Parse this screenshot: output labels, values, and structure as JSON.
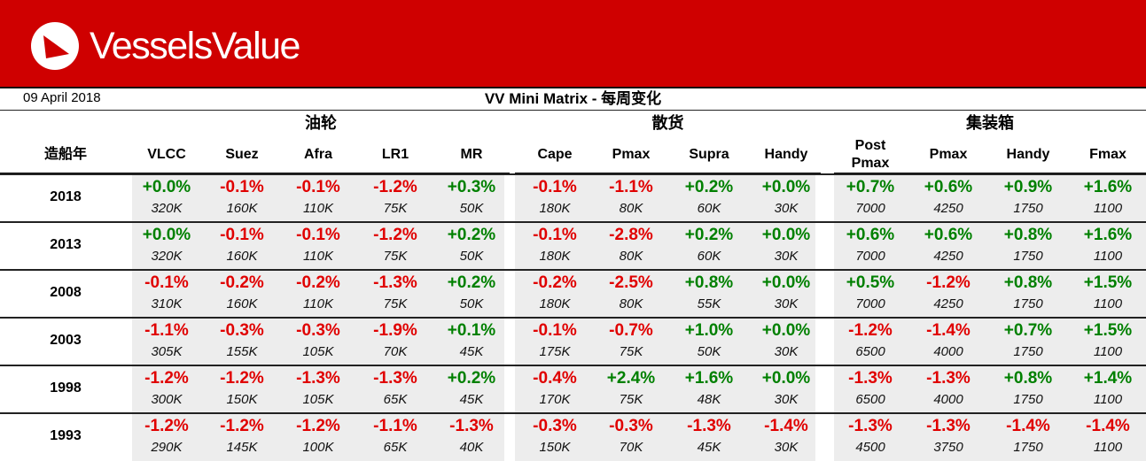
{
  "brand": {
    "name": "VesselsValue",
    "icon": "vesselsvalue-logo-icon"
  },
  "header": {
    "date": "09 April 2018",
    "title": "VV Mini Matrix - 每周变化"
  },
  "colors": {
    "banner": "#cf0000",
    "negative": "#e00000",
    "positive": "#008000",
    "cell_bg": "#ededed"
  },
  "row_label_header": "造船年",
  "groups": [
    {
      "name": "油轮",
      "columns": [
        "VLCC",
        "Suez",
        "Afra",
        "LR1",
        "MR"
      ]
    },
    {
      "name": "散货",
      "columns": [
        "Cape",
        "Pmax",
        "Supra",
        "Handy"
      ]
    },
    {
      "name": "集装箱",
      "columns": [
        "Post\nPmax",
        "Pmax",
        "Handy",
        "Fmax"
      ]
    }
  ],
  "rows": [
    {
      "year": "2018",
      "pct": [
        "+0.0%",
        "-0.1%",
        "-0.1%",
        "-1.2%",
        "+0.3%",
        "-0.1%",
        "-1.1%",
        "+0.2%",
        "+0.0%",
        "+0.7%",
        "+0.6%",
        "+0.9%",
        "+1.6%"
      ],
      "val": [
        "320K",
        "160K",
        "110K",
        "75K",
        "50K",
        "180K",
        "80K",
        "60K",
        "30K",
        "7000",
        "4250",
        "1750",
        "1100"
      ]
    },
    {
      "year": "2013",
      "pct": [
        "+0.0%",
        "-0.1%",
        "-0.1%",
        "-1.2%",
        "+0.2%",
        "-0.1%",
        "-2.8%",
        "+0.2%",
        "+0.0%",
        "+0.6%",
        "+0.6%",
        "+0.8%",
        "+1.6%"
      ],
      "val": [
        "320K",
        "160K",
        "110K",
        "75K",
        "50K",
        "180K",
        "80K",
        "60K",
        "30K",
        "7000",
        "4250",
        "1750",
        "1100"
      ]
    },
    {
      "year": "2008",
      "pct": [
        "-0.1%",
        "-0.2%",
        "-0.2%",
        "-1.3%",
        "+0.2%",
        "-0.2%",
        "-2.5%",
        "+0.8%",
        "+0.0%",
        "+0.5%",
        "-1.2%",
        "+0.8%",
        "+1.5%"
      ],
      "val": [
        "310K",
        "160K",
        "110K",
        "75K",
        "50K",
        "180K",
        "80K",
        "55K",
        "30K",
        "7000",
        "4250",
        "1750",
        "1100"
      ]
    },
    {
      "year": "2003",
      "pct": [
        "-1.1%",
        "-0.3%",
        "-0.3%",
        "-1.9%",
        "+0.1%",
        "-0.1%",
        "-0.7%",
        "+1.0%",
        "+0.0%",
        "-1.2%",
        "-1.4%",
        "+0.7%",
        "+1.5%"
      ],
      "val": [
        "305K",
        "155K",
        "105K",
        "70K",
        "45K",
        "175K",
        "75K",
        "50K",
        "30K",
        "6500",
        "4000",
        "1750",
        "1100"
      ]
    },
    {
      "year": "1998",
      "pct": [
        "-1.2%",
        "-1.2%",
        "-1.3%",
        "-1.3%",
        "+0.2%",
        "-0.4%",
        "+2.4%",
        "+1.6%",
        "+0.0%",
        "-1.3%",
        "-1.3%",
        "+0.8%",
        "+1.4%"
      ],
      "val": [
        "300K",
        "150K",
        "105K",
        "65K",
        "45K",
        "170K",
        "75K",
        "48K",
        "30K",
        "6500",
        "4000",
        "1750",
        "1100"
      ]
    },
    {
      "year": "1993",
      "pct": [
        "-1.2%",
        "-1.2%",
        "-1.2%",
        "-1.1%",
        "-1.3%",
        "-0.3%",
        "-0.3%",
        "-1.3%",
        "-1.4%",
        "-1.3%",
        "-1.3%",
        "-1.4%",
        "-1.4%"
      ],
      "val": [
        "290K",
        "145K",
        "100K",
        "65K",
        "40K",
        "150K",
        "70K",
        "45K",
        "30K",
        "4500",
        "3750",
        "1750",
        "1100"
      ]
    }
  ]
}
